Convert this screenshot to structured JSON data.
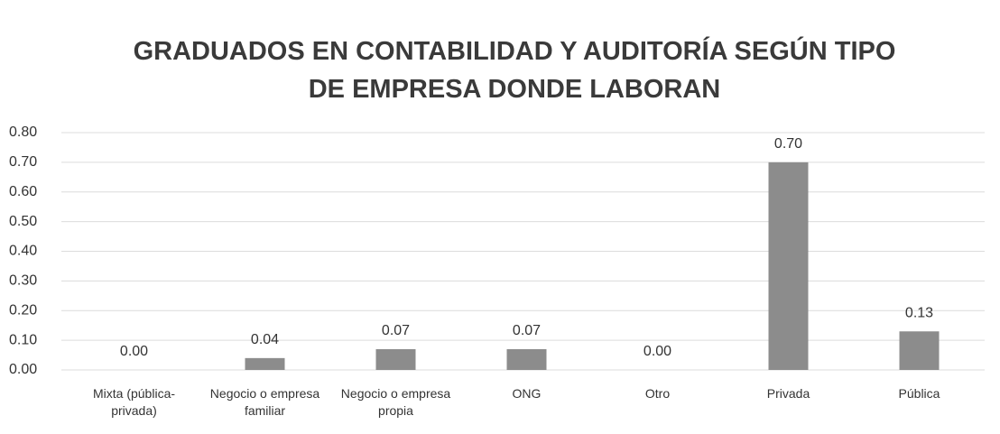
{
  "chart_data": {
    "type": "bar",
    "title": "GRADUADOS EN CONTABILIDAD Y AUDITORÍA SEGÚN TIPO DE EMPRESA DONDE LABORAN",
    "categories": [
      "Mixta (pública-privada)",
      "Negocio o empresa familiar",
      "Negocio o empresa propia",
      "ONG",
      "Otro",
      "Privada",
      "Pública"
    ],
    "values": [
      0.0,
      0.04,
      0.07,
      0.07,
      0.0,
      0.7,
      0.13
    ],
    "value_labels": [
      "0.00",
      "0.04",
      "0.07",
      "0.07",
      "0.00",
      "0.70",
      "0.13"
    ],
    "color": "#8c8c8c",
    "ylim": [
      0,
      0.8
    ],
    "yticks": [
      {
        "value": 0,
        "label": "0.00"
      },
      {
        "value": 0.1,
        "label": "0.10"
      },
      {
        "value": 0.2,
        "label": "0.20"
      },
      {
        "value": 0.3,
        "label": "0.30"
      },
      {
        "value": 0.4,
        "label": "0.40"
      },
      {
        "value": 0.5,
        "label": "0.50"
      },
      {
        "value": 0.6,
        "label": "0.60"
      },
      {
        "value": 0.7,
        "label": "0.70"
      },
      {
        "value": 0.8,
        "label": "0.80"
      }
    ],
    "grid": true
  }
}
